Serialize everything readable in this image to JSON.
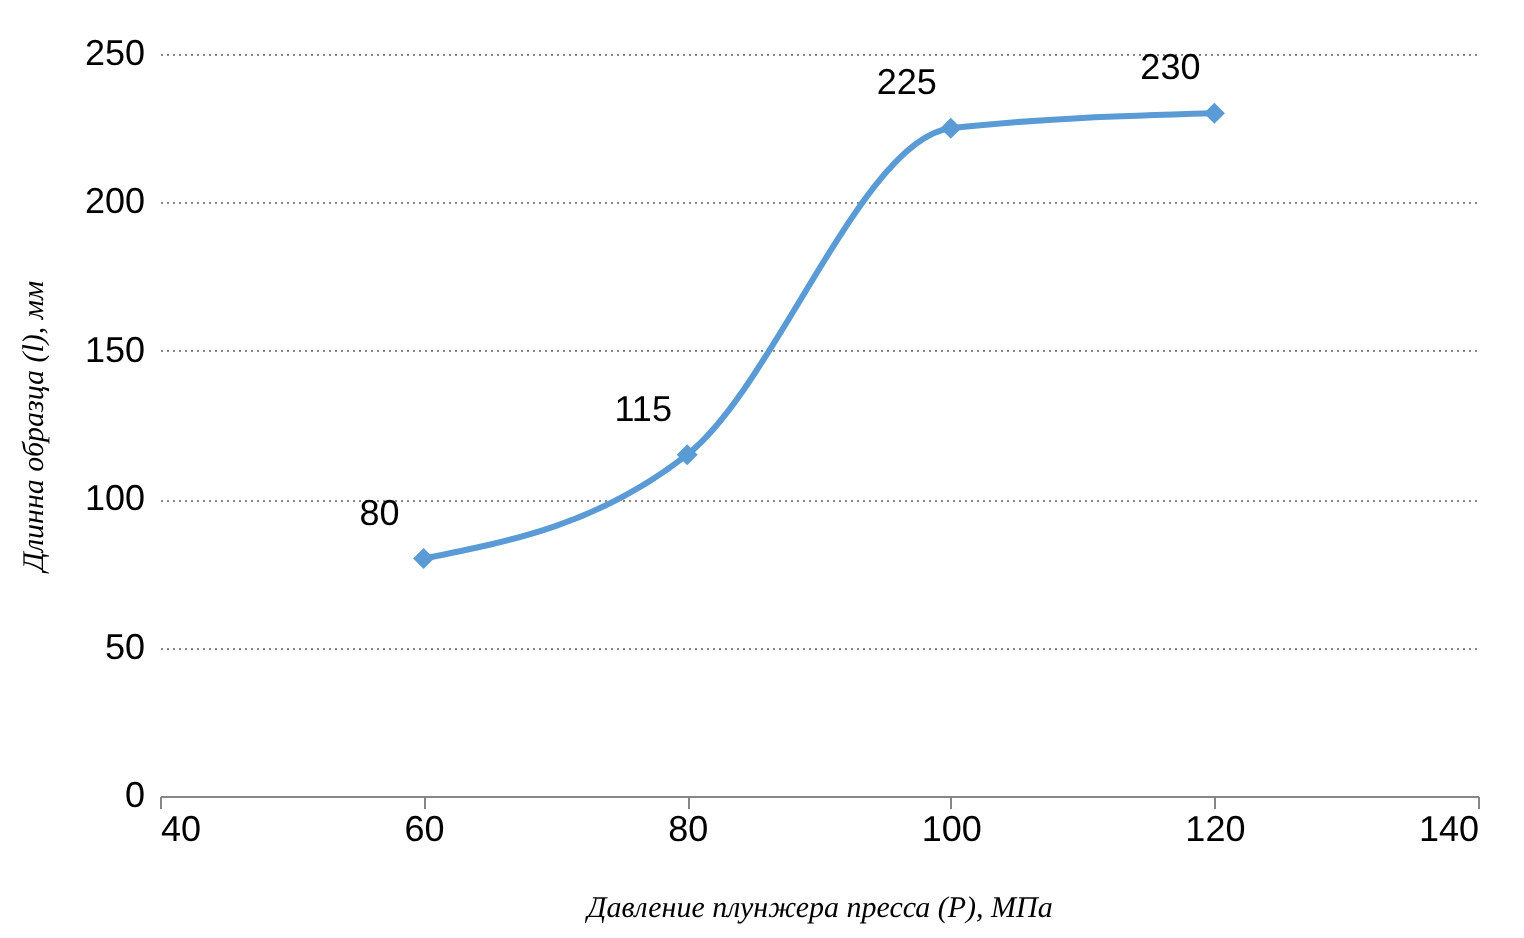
{
  "chart_data": {
    "type": "line",
    "xlabel": "Давление плунжера пресса (P), МПа",
    "ylabel": "Длинна образца (l), мм",
    "x": [
      60,
      80,
      100,
      120
    ],
    "series": [
      {
        "color": "#5b9bd5",
        "values": [
          80,
          115,
          225,
          230
        ]
      }
    ],
    "xlim": [
      40,
      140
    ],
    "xticks": [
      40,
      60,
      80,
      100,
      120,
      140
    ],
    "ylim": [
      0,
      250
    ],
    "yticks": [
      0,
      50,
      100,
      150,
      200,
      250
    ],
    "grid": "y",
    "marker": "diamond",
    "line_style": "solid",
    "data_labels": true
  }
}
